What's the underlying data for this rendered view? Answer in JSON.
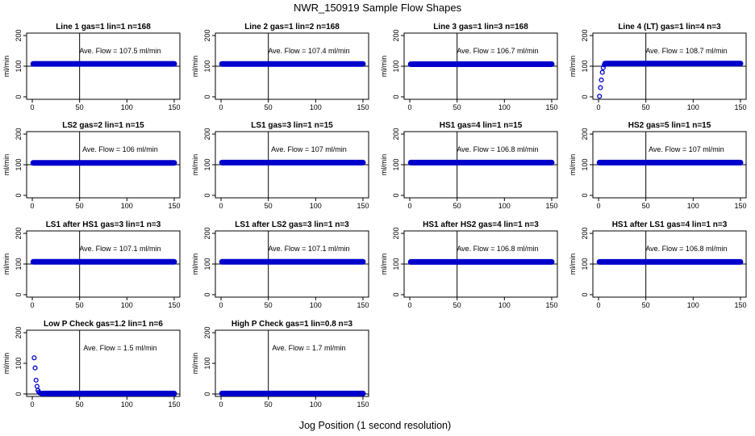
{
  "figure": {
    "title": "NWR_150919  Sample Flow Shapes",
    "xlabel": "Jog Position (1 second resolution)"
  },
  "style": {
    "point_color": "#0000cc",
    "axis_color": "#000000"
  },
  "chart_data": [
    {
      "type": "scatter",
      "title": "Line 1 gas=1 lin=1 n=168",
      "ylabel": "ml/min",
      "annotation": "Ave. Flow =  107.5  ml/min",
      "xlim": [
        0,
        150
      ],
      "ylim": [
        0,
        200
      ],
      "xticks": [
        0,
        50,
        100,
        150
      ],
      "yticks": [
        0,
        100,
        200
      ],
      "vline": 50,
      "hline": 100,
      "series": [
        {
          "kind": "flat",
          "x": [
            1,
            150
          ],
          "y": 107.5
        }
      ]
    },
    {
      "type": "scatter",
      "title": "Line 2 gas=1 lin=2 n=168",
      "ylabel": "ml/min",
      "annotation": "Ave. Flow =  107.4  ml/min",
      "xlim": [
        0,
        150
      ],
      "ylim": [
        0,
        200
      ],
      "xticks": [
        0,
        50,
        100,
        150
      ],
      "yticks": [
        0,
        100,
        200
      ],
      "vline": 50,
      "hline": 100,
      "series": [
        {
          "kind": "flat",
          "x": [
            1,
            150
          ],
          "y": 107.4
        }
      ]
    },
    {
      "type": "scatter",
      "title": "Line 3 gas=1 lin=3 n=168",
      "ylabel": "ml/min",
      "annotation": "Ave. Flow =  106.7  ml/min",
      "xlim": [
        0,
        150
      ],
      "ylim": [
        0,
        200
      ],
      "xticks": [
        0,
        50,
        100,
        150
      ],
      "yticks": [
        0,
        100,
        200
      ],
      "vline": 50,
      "hline": 100,
      "series": [
        {
          "kind": "flat",
          "x": [
            1,
            150
          ],
          "y": 106.7
        }
      ]
    },
    {
      "type": "scatter",
      "title": "Line 4 (LT) gas=1 lin=4 n=3",
      "ylabel": "ml/min",
      "annotation": "Ave. Flow =  108.7  ml/min",
      "xlim": [
        0,
        150
      ],
      "ylim": [
        0,
        200
      ],
      "xticks": [
        0,
        50,
        100,
        150
      ],
      "yticks": [
        0,
        100,
        200
      ],
      "vline": 50,
      "hline": 100,
      "series": [
        {
          "kind": "points",
          "x": [
            1,
            2,
            3,
            4,
            5,
            6
          ],
          "y": [
            2,
            30,
            55,
            80,
            95,
            104
          ]
        },
        {
          "kind": "flat",
          "x": [
            7,
            150
          ],
          "y": 108.7
        }
      ]
    },
    {
      "type": "scatter",
      "title": "LS2 gas=2 lin=1 n=15",
      "ylabel": "ml/min",
      "annotation": "Ave. Flow =  106  ml/min",
      "xlim": [
        0,
        150
      ],
      "ylim": [
        0,
        200
      ],
      "xticks": [
        0,
        50,
        100,
        150
      ],
      "yticks": [
        0,
        100,
        200
      ],
      "vline": 50,
      "hline": 100,
      "series": [
        {
          "kind": "flat",
          "x": [
            1,
            150
          ],
          "y": 106
        }
      ]
    },
    {
      "type": "scatter",
      "title": "LS1 gas=3 lin=1 n=15",
      "ylabel": "ml/min",
      "annotation": "Ave. Flow =  107  ml/min",
      "xlim": [
        0,
        150
      ],
      "ylim": [
        0,
        200
      ],
      "xticks": [
        0,
        50,
        100,
        150
      ],
      "yticks": [
        0,
        100,
        200
      ],
      "vline": 50,
      "hline": 100,
      "series": [
        {
          "kind": "flat",
          "x": [
            1,
            150
          ],
          "y": 107
        }
      ]
    },
    {
      "type": "scatter",
      "title": "HS1 gas=4 lin=1 n=15",
      "ylabel": "ml/min",
      "annotation": "Ave. Flow =  106.8  ml/min",
      "xlim": [
        0,
        150
      ],
      "ylim": [
        0,
        200
      ],
      "xticks": [
        0,
        50,
        100,
        150
      ],
      "yticks": [
        0,
        100,
        200
      ],
      "vline": 50,
      "hline": 100,
      "series": [
        {
          "kind": "flat",
          "x": [
            1,
            150
          ],
          "y": 106.8
        }
      ]
    },
    {
      "type": "scatter",
      "title": "HS2 gas=5 lin=1 n=15",
      "ylabel": "ml/min",
      "annotation": "Ave. Flow =  107  ml/min",
      "xlim": [
        0,
        150
      ],
      "ylim": [
        0,
        200
      ],
      "xticks": [
        0,
        50,
        100,
        150
      ],
      "yticks": [
        0,
        100,
        200
      ],
      "vline": 50,
      "hline": 100,
      "series": [
        {
          "kind": "flat",
          "x": [
            1,
            150
          ],
          "y": 107
        }
      ]
    },
    {
      "type": "scatter",
      "title": "LS1 after HS1 gas=3 lin=1 n=3",
      "ylabel": "ml/min",
      "annotation": "Ave. Flow =  107.1  ml/min",
      "xlim": [
        0,
        150
      ],
      "ylim": [
        0,
        200
      ],
      "xticks": [
        0,
        50,
        100,
        150
      ],
      "yticks": [
        0,
        100,
        200
      ],
      "vline": 50,
      "hline": 100,
      "series": [
        {
          "kind": "flat",
          "x": [
            1,
            150
          ],
          "y": 107.1
        }
      ]
    },
    {
      "type": "scatter",
      "title": "LS1 after LS2 gas=3 lin=1 n=3",
      "ylabel": "ml/min",
      "annotation": "Ave. Flow =  107.1  ml/min",
      "xlim": [
        0,
        150
      ],
      "ylim": [
        0,
        200
      ],
      "xticks": [
        0,
        50,
        100,
        150
      ],
      "yticks": [
        0,
        100,
        200
      ],
      "vline": 50,
      "hline": 100,
      "series": [
        {
          "kind": "flat",
          "x": [
            1,
            150
          ],
          "y": 107.1
        }
      ]
    },
    {
      "type": "scatter",
      "title": "HS1 after HS2 gas=4 lin=1 n=3",
      "ylabel": "ml/min",
      "annotation": "Ave. Flow =  106.8  ml/min",
      "xlim": [
        0,
        150
      ],
      "ylim": [
        0,
        200
      ],
      "xticks": [
        0,
        50,
        100,
        150
      ],
      "yticks": [
        0,
        100,
        200
      ],
      "vline": 50,
      "hline": 100,
      "series": [
        {
          "kind": "flat",
          "x": [
            1,
            150
          ],
          "y": 106.8
        }
      ]
    },
    {
      "type": "scatter",
      "title": "HS1 after LS1 gas=4 lin=1 n=3",
      "ylabel": "ml/min",
      "annotation": "Ave. Flow =  106.8  ml/min",
      "xlim": [
        0,
        150
      ],
      "ylim": [
        0,
        200
      ],
      "xticks": [
        0,
        50,
        100,
        150
      ],
      "yticks": [
        0,
        100,
        200
      ],
      "vline": 50,
      "hline": 100,
      "series": [
        {
          "kind": "flat",
          "x": [
            1,
            150
          ],
          "y": 106.8
        }
      ]
    },
    {
      "type": "scatter",
      "title": "Low P Check gas=1.2 lin=1 n=6",
      "ylabel": "ml/min",
      "annotation": "Ave. Flow =  1.5  ml/min",
      "xlim": [
        0,
        150
      ],
      "ylim": [
        0,
        200
      ],
      "xticks": [
        0,
        50,
        100,
        150
      ],
      "yticks": [
        0,
        100,
        200
      ],
      "vline": 50,
      "hline": 0,
      "series": [
        {
          "kind": "points",
          "x": [
            2,
            3,
            4,
            5,
            6,
            7,
            8,
            9,
            10
          ],
          "y": [
            118,
            85,
            45,
            25,
            12,
            6,
            3,
            2,
            1
          ]
        },
        {
          "kind": "flat",
          "x": [
            11,
            150
          ],
          "y": 1.5
        }
      ]
    },
    {
      "type": "scatter",
      "title": "High P Check gas=1 lin=0.8 n=3",
      "ylabel": "ml/min",
      "annotation": "Ave. Flow =  1.7  ml/min",
      "xlim": [
        0,
        150
      ],
      "ylim": [
        0,
        200
      ],
      "xticks": [
        0,
        50,
        100,
        150
      ],
      "yticks": [
        0,
        100,
        200
      ],
      "vline": 50,
      "hline": 0,
      "series": [
        {
          "kind": "flat",
          "x": [
            1,
            150
          ],
          "y": 1.7
        }
      ]
    }
  ]
}
